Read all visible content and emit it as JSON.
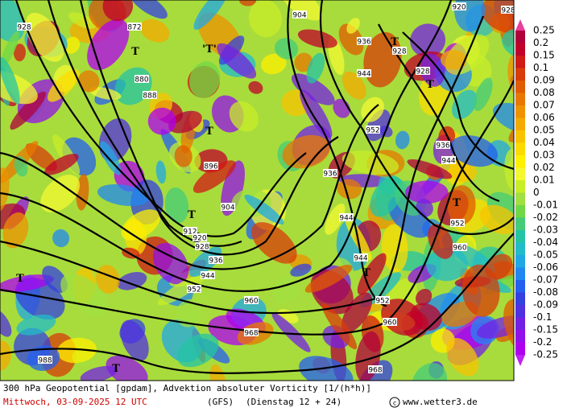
{
  "map": {
    "contour_labels": [
      "928",
      "872",
      "880",
      "888",
      "896",
      "904",
      "912",
      "920",
      "928",
      "936",
      "944",
      "952",
      "960",
      "968",
      "988",
      "968",
      "960",
      "952",
      "944",
      "944",
      "936",
      "952",
      "944",
      "936",
      "928",
      "928",
      "936",
      "944",
      "952",
      "960",
      "904",
      "920",
      "928"
    ],
    "markers": [
      "T",
      "'T'",
      "T",
      "T",
      "T",
      "T",
      "T",
      "T",
      "T",
      "T"
    ],
    "colorbar": {
      "labels": [
        "0.25",
        "0.2",
        "0.15",
        "0.1",
        "0.09",
        "0.08",
        "0.07",
        "0.06",
        "0.05",
        "0.04",
        "0.03",
        "0.02",
        "0.01",
        "0",
        "-0.01",
        "-0.02",
        "-0.03",
        "-0.04",
        "-0.05",
        "-0.06",
        "-0.07",
        "-0.08",
        "-0.09",
        "-0.1",
        "-0.15",
        "-0.2",
        "-0.25"
      ],
      "colors": [
        "#b0003c",
        "#c0002a",
        "#d01a14",
        "#d83c08",
        "#e05c00",
        "#e87800",
        "#ee9200",
        "#f4aa00",
        "#f8c400",
        "#fcdc00",
        "#fff000",
        "#f4f830",
        "#c8ee28",
        "#a0e040",
        "#70d846",
        "#44cc78",
        "#24c4a4",
        "#22bcc8",
        "#20a8e4",
        "#2088f0",
        "#2460f0",
        "#3440e0",
        "#5030e0",
        "#7420e4",
        "#9410e8",
        "#b000f0"
      ],
      "over": "#e83e9c",
      "under": "#c020f0"
    },
    "caption": {
      "line1": "300 hPa Geopotential [gpdam], Advektion absoluter Vorticity [1/(h*h)]",
      "date": "Mittwoch, 03-09-2025  12 UTC",
      "model": "(GFS)",
      "run": "(Dienstag 12 + 24)",
      "site": "www.wetter3.de"
    }
  }
}
